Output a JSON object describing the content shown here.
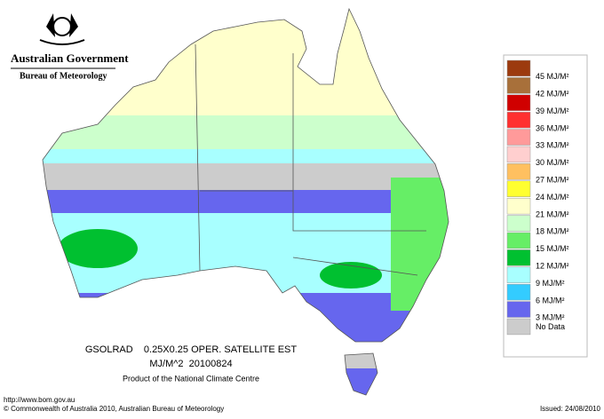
{
  "header": {
    "government": "Australian Government",
    "bureau": "Bureau of Meteorology"
  },
  "legend": {
    "labels": [
      "45 MJ/M²",
      "42 MJ/M²",
      "39 MJ/M²",
      "36 MJ/M²",
      "33 MJ/M²",
      "30 MJ/M²",
      "27 MJ/M²",
      "24 MJ/M²",
      "21 MJ/M²",
      "18 MJ/M²",
      "15 MJ/M²",
      "12 MJ/M²",
      "9 MJ/M²",
      "6 MJ/M²",
      "3 MJ/M²",
      "No Data"
    ],
    "colors": [
      "#9c3a0e",
      "#a8703a",
      "#d00000",
      "#ff3030",
      "#ff9a9a",
      "#ffcfcf",
      "#ffc060",
      "#ffff30",
      "#ffffcc",
      "#ccffcc",
      "#66ee66",
      "#00c030",
      "#a8ffff",
      "#33ccff",
      "#6666ee",
      "#cccccc"
    ]
  },
  "caption": {
    "line1": "GSOLRAD    0.25X0.25 OPER. SATELLITE EST",
    "line2": "MJ/M^2  20100824",
    "line3": "Product of the National Climate Centre"
  },
  "footer": {
    "url": "http://www.bom.gov.au",
    "copyright": "© Commonwealth of Australia 2010, Australian Bureau of Meteorology",
    "issued": "Issued: 24/08/2010"
  }
}
